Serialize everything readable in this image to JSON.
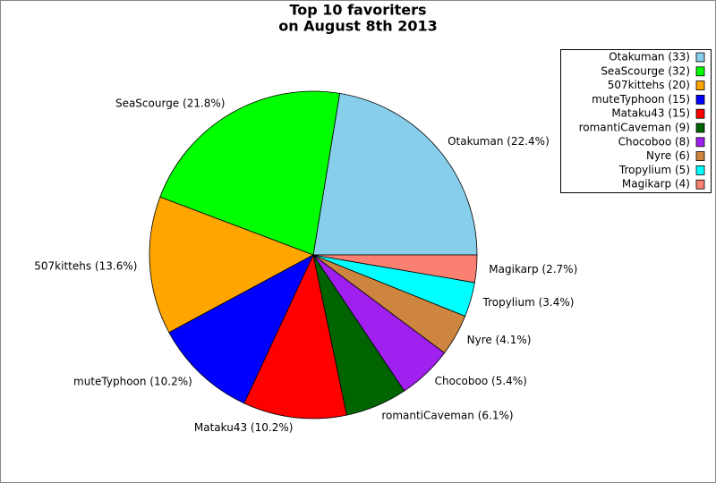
{
  "chart_data": {
    "type": "pie",
    "title": [
      "Top 10 favoriters",
      "on August 8th 2013"
    ],
    "categories": [
      "Otakuman (33)",
      "SeaScourge (32)",
      "507kittehs (20)",
      "muteTyphoon (15)",
      "Mataku43 (15)",
      "romantiCaveman (9)",
      "Chocoboo (8)",
      "Nyre (6)",
      "Tropylium (5)",
      "Magikarp (4)"
    ],
    "values": [
      22.4,
      21.8,
      13.6,
      10.2,
      10.2,
      6.1,
      5.4,
      4.1,
      3.4,
      2.7
    ],
    "value_labels": [
      "Otakuman (22.4%)",
      "SeaScourge (21.8%)",
      "507kittehs (13.6%)",
      "muteTyphoon (10.2%)",
      "Mataku43 (10.2%)",
      "romantiCaveman (6.1%)",
      "Chocoboo (5.4%)",
      "Nyre (4.1%)",
      "Tropylium (3.4%)",
      "Magikarp (2.7%)"
    ],
    "colors": [
      "#87ceeb",
      "#00ff00",
      "#ffa500",
      "#0000ff",
      "#ff0000",
      "#006400",
      "#a020f0",
      "#cd853f",
      "#00ffff",
      "#fa8072"
    ],
    "legend": "top-right"
  }
}
